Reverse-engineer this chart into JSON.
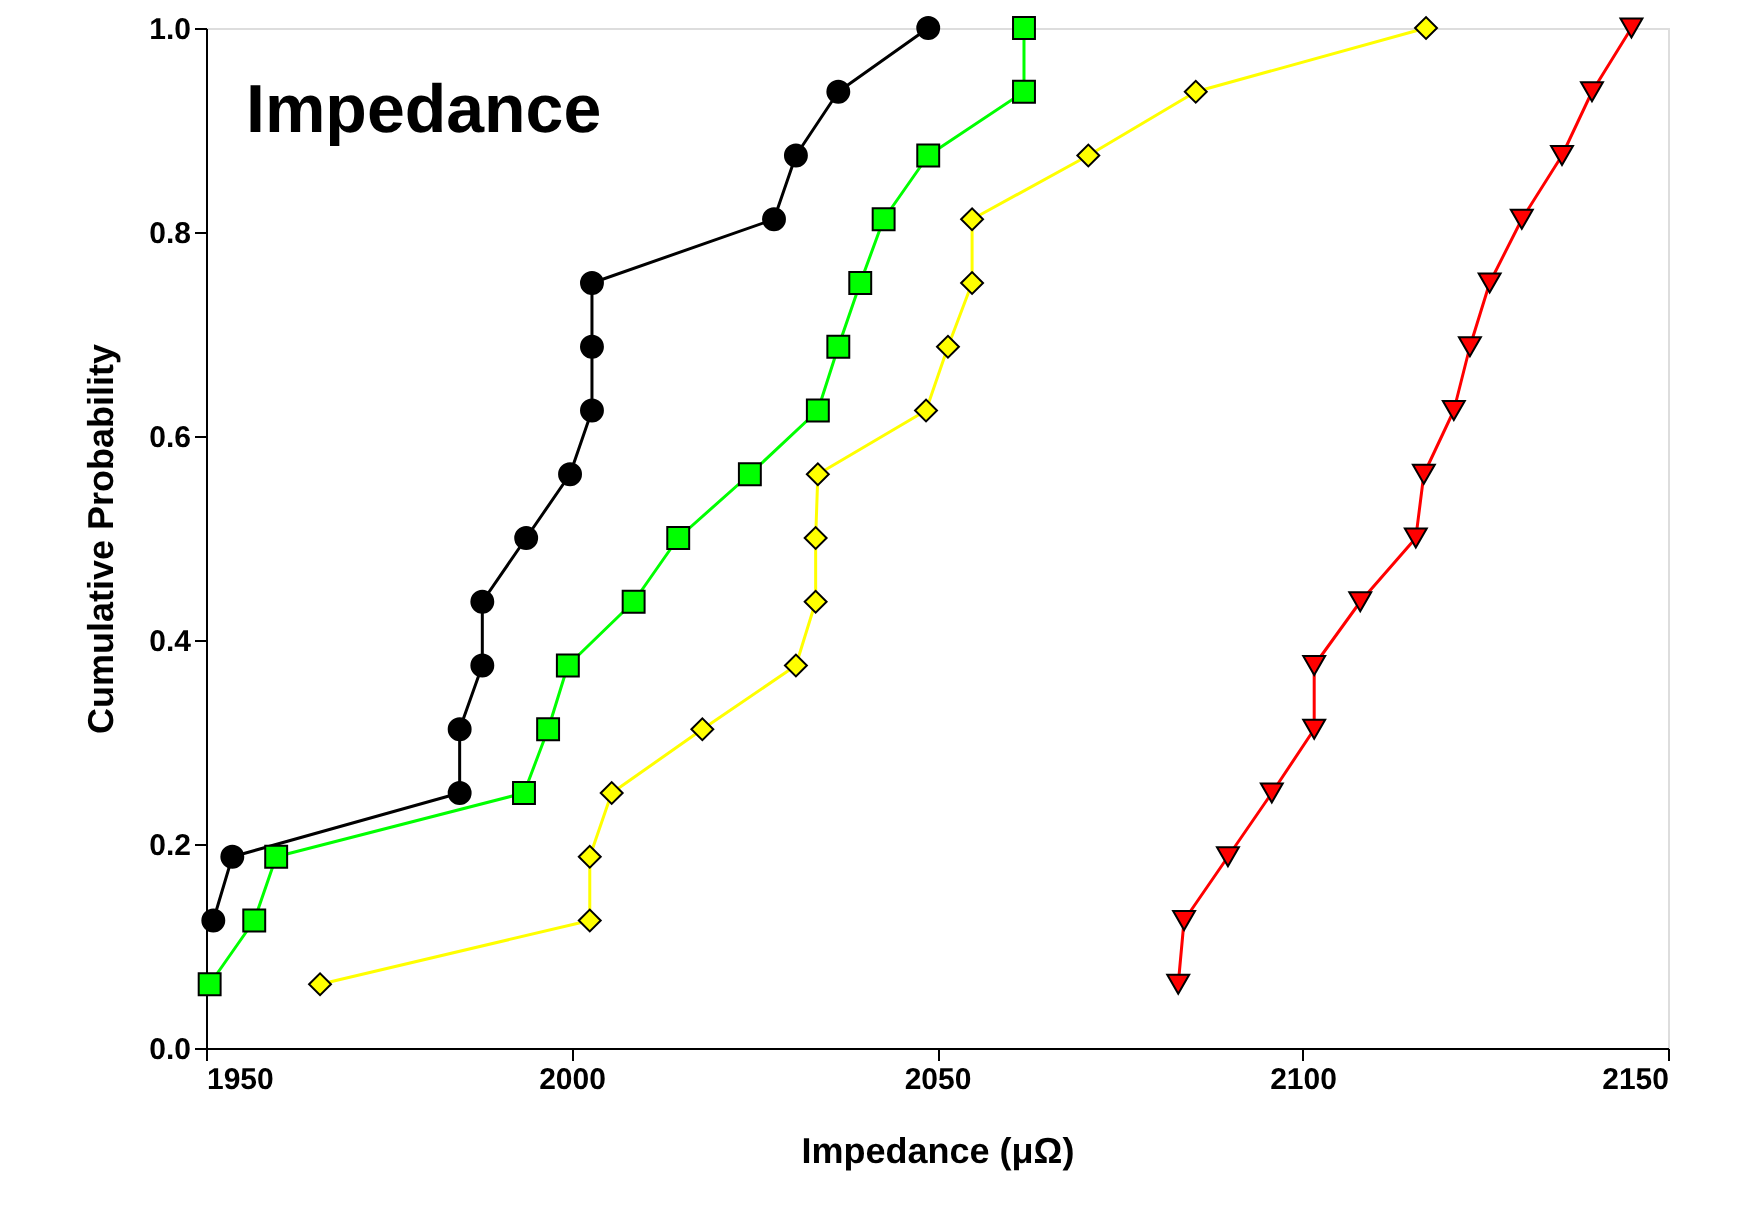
{
  "chart_data": {
    "type": "line",
    "title": "Impedance",
    "xlabel": "Impedance (μΩ)",
    "ylabel": "Cumulative Probability",
    "xlim": [
      1950,
      2150
    ],
    "xticks": [
      1950,
      2000,
      2050,
      2100,
      2150
    ],
    "ylim": [
      0,
      1
    ],
    "yticks": [
      {
        "value": 0,
        "label": "0.0"
      },
      {
        "value": 0.2,
        "label": "0.2"
      },
      {
        "value": 0.4,
        "label": "0.4"
      },
      {
        "value": 0.6,
        "label": "0.6"
      },
      {
        "value": 0.8,
        "label": "0.8"
      },
      {
        "value": 1,
        "label": "1.0"
      }
    ],
    "grid": false,
    "series": [
      {
        "color": "#000000",
        "marker": "circle",
        "x": [
          1951,
          1953.6,
          1984.7,
          1984.7,
          1987.8,
          1987.8,
          1993.8,
          1999.8,
          2002.8,
          2002.8,
          2002.8,
          2027.7,
          2030.7,
          2036.5,
          2048.8
        ],
        "values": [
          0.125,
          0.1875,
          0.25,
          0.3125,
          0.375,
          0.4375,
          0.5,
          0.5625,
          0.625,
          0.6875,
          0.75,
          0.8125,
          0.875,
          0.9375,
          1.0
        ]
      },
      {
        "color": "#00ff00",
        "marker": "square",
        "x": [
          1950.5,
          1956.6,
          1959.6,
          1993.5,
          1996.8,
          1999.5,
          2008.5,
          2014.6,
          2024.4,
          2033.7,
          2036.5,
          2039.5,
          2042.7,
          2048.8,
          2061.9,
          2061.9
        ],
        "values": [
          0.0625,
          0.125,
          0.1875,
          0.25,
          0.3125,
          0.375,
          0.4375,
          0.5,
          0.5625,
          0.625,
          0.6875,
          0.75,
          0.8125,
          0.875,
          0.9375,
          1.0
        ]
      },
      {
        "color": "#ffff00",
        "marker": "diamond",
        "x": [
          1965.6,
          2002.5,
          2002.5,
          2005.5,
          2017.9,
          2030.7,
          2033.4,
          2033.4,
          2033.7,
          2048.5,
          2051.5,
          2054.8,
          2054.8,
          2070.7,
          2085.4,
          2116.9
        ],
        "values": [
          0.0625,
          0.125,
          0.1875,
          0.25,
          0.3125,
          0.375,
          0.4375,
          0.5,
          0.5625,
          0.625,
          0.6875,
          0.75,
          0.8125,
          0.875,
          0.9375,
          1.0
        ]
      },
      {
        "color": "#ff0000",
        "marker": "triangle",
        "x": [
          2083.0,
          2083.8,
          2089.8,
          2095.8,
          2101.6,
          2101.6,
          2107.9,
          2115.5,
          2116.6,
          2120.7,
          2122.9,
          2125.6,
          2130.0,
          2135.5,
          2139.6,
          2145.0
        ],
        "values": [
          0.0625,
          0.125,
          0.1875,
          0.25,
          0.3125,
          0.375,
          0.4375,
          0.5,
          0.5625,
          0.625,
          0.6875,
          0.75,
          0.8125,
          0.875,
          0.9375,
          1.0
        ]
      }
    ]
  }
}
